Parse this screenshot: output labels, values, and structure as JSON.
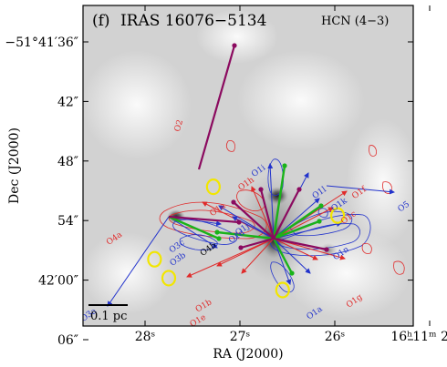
{
  "chart_data": {
    "type": "scatter",
    "panel_label": "(f)",
    "source_name": "IRAS 16076−5134",
    "line_label": "HCN (4−3)",
    "xlabel": "RA (J2000)",
    "ylabel": "Dec (J2000)",
    "x_ticks": [
      "28ˢ",
      "27ˢ",
      "26ˢ",
      "16ʰ11ᵐ 25ˢ"
    ],
    "x_tick_values_sec": [
      28,
      27,
      26,
      25
    ],
    "y_ticks": [
      "−51°41′36″",
      "42″",
      "48″",
      "54″",
      "42′00″",
      "06″"
    ],
    "y_tick_values_arcsec": [
      36,
      42,
      48,
      54,
      60,
      66
    ],
    "scale_bar_label": "0.1 pc",
    "colors": {
      "blue_lobe": "#2233cc",
      "red_lobe": "#e02a2a",
      "axis_green": "#19b319",
      "axis_purple": "#8b0a5f",
      "core_yellow": "#f2e600",
      "background": "#d4d4d4"
    },
    "cores": [
      {
        "name": "O1",
        "ra_sec": 26.55,
        "dec_arcsec": 61.0
      },
      {
        "name": "O2",
        "ra_sec": 27.28,
        "dec_arcsec": 50.6
      },
      {
        "name": "O3",
        "ra_sec": 27.75,
        "dec_arcsec": 59.8
      },
      {
        "name": "O5",
        "ra_sec": 25.97,
        "dec_arcsec": 53.5
      },
      {
        "name": "O4",
        "ra_sec": 27.9,
        "dec_arcsec": 57.9
      }
    ],
    "outflow_labels": [
      {
        "text": "O2",
        "color": "red",
        "ra_sec": 27.62,
        "dec_arcsec": 44.5
      },
      {
        "text": "O1i",
        "color": "blue",
        "ra_sec": 26.79,
        "dec_arcsec": 49.2
      },
      {
        "text": "O1h",
        "color": "red",
        "ra_sec": 26.92,
        "dec_arcsec": 50.5
      },
      {
        "text": "O1a",
        "color": "red",
        "ra_sec": 27.22,
        "dec_arcsec": 53.1
      },
      {
        "text": "O1l",
        "color": "blue",
        "ra_sec": 26.15,
        "dec_arcsec": 51.4
      },
      {
        "text": "O1f",
        "color": "red",
        "ra_sec": 25.73,
        "dec_arcsec": 51.4
      },
      {
        "text": "O1k",
        "color": "blue",
        "ra_sec": 25.94,
        "dec_arcsec": 52.6
      },
      {
        "text": "O5",
        "color": "blue",
        "ra_sec": 25.26,
        "dec_arcsec": 52.8
      },
      {
        "text": "O1c",
        "color": "red",
        "ra_sec": 25.84,
        "dec_arcsec": 53.9
      },
      {
        "text": "O1j",
        "color": "blue",
        "ra_sec": 26.96,
        "dec_arcsec": 55.1
      },
      {
        "text": "O1d",
        "color": "blue",
        "ra_sec": 27.02,
        "dec_arcsec": 55.8
      },
      {
        "text": "O4a",
        "color": "red",
        "ra_sec": 28.31,
        "dec_arcsec": 56.0
      },
      {
        "text": "O3c",
        "color": "blue",
        "ra_sec": 27.65,
        "dec_arcsec": 56.8
      },
      {
        "text": "O4b",
        "color": "black",
        "ra_sec": 27.32,
        "dec_arcsec": 57.1
      },
      {
        "text": "O3b",
        "color": "blue",
        "ra_sec": 27.64,
        "dec_arcsec": 58.1
      },
      {
        "text": "O1n",
        "color": "blue",
        "ra_sec": 25.92,
        "dec_arcsec": 57.5
      },
      {
        "text": "O1g",
        "color": "red",
        "ra_sec": 25.78,
        "dec_arcsec": 62.3
      },
      {
        "text": "O1b",
        "color": "red",
        "ra_sec": 27.37,
        "dec_arcsec": 62.8
      },
      {
        "text": "O1e",
        "color": "red",
        "ra_sec": 27.43,
        "dec_arcsec": 64.3
      },
      {
        "text": "O1a",
        "color": "blue",
        "ra_sec": 26.2,
        "dec_arcsec": 63.5
      },
      {
        "text": "O1b",
        "color": "blue",
        "ra_sec": 26.52,
        "dec_arcsec": 66.0
      },
      {
        "text": "O3a",
        "color": "blue",
        "ra_sec": 28.58,
        "dec_arcsec": 63.7
      }
    ]
  }
}
